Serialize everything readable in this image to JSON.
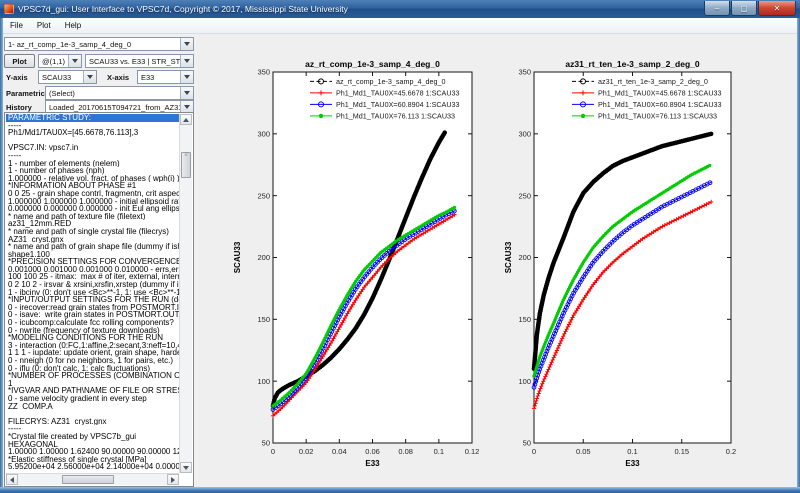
{
  "window": {
    "title": "VPSC7d_gui: User Interface to VPSC7d, Copyright © 2017, Mississippi State University",
    "menu": [
      "File",
      "Plot",
      "Help"
    ],
    "buttons": {
      "minimize": "–",
      "maximize": "▢",
      "close": "✕"
    }
  },
  "controls": {
    "dataset_value": "1- az_rt_comp_1e-3_samp_4_deg_0",
    "plot_button": "Plot",
    "subplot_value": "@(1,1)",
    "series_value": "SCAU33 vs. E33 | STR_STR.OUT",
    "yaxis_label": "Y-axis",
    "yaxis_value": "SCAU33",
    "xaxis_label": "X-axis",
    "xaxis_value": "E33",
    "parametric_label": "Parametric",
    "parametric_value": "(Select)",
    "history_label": "History",
    "history_value": "Loaded_20170615T094721_from_AZ31.list"
  },
  "listbox": {
    "selected_index": 0,
    "lines": [
      "PARAMETRIC STUDY:",
      "-----",
      "Ph1/Md1/TAU0X=[45.6678,76.113],3",
      "",
      "VPSC7.IN: vpsc7.in",
      "-----",
      "1 - number of elements (nelem)",
      "1 - number of phases (nph)",
      "1.000000 - relative vol. fract. of phases ( wph(i) )",
      "*INFORMATION ABOUT PHASE #1",
      "0 0 25 - grain shape contrl, fragmentn, crit aspect ratio",
      "1.000000 1.000000 1.000000 - initial ellipsoid ratios (dummy i",
      "0.000000 0.000000 0.000000 - init Eul ang ellips axes (dumm",
      "* name and path of texture file (filetext)",
      "az31_12mm.RED",
      "* name and path of single crystal file (filecrys)",
      "AZ31_cryst.gnx",
      "* name and path of grain shape file (dummy if ishape=0) (filea",
      "shape1.100",
      "*PRECISION SETTINGS FOR CONVERGENCE PROCEDUR",
      "0.001000 0.001000 0.001000 0.010000 - errs,errd,errm,errso",
      "100 100 25 - itmax:  max # of iter, external, internal and SO l",
      "0 2 10 2 - irsvar & xrsini,xrsfin,xrstep (dummy if irsvar=0)",
      "1 - ibcinv (0: don't use <Bc>**-1, 1: use <Bc>**-1 in SC eq)",
      "*INPUT/OUTPUT SETTINGS FOR THE RUN (default is zero)",
      "0 - irecover:read grain states from POSTMORT.IN (1) or not (0",
      "0 - isave:  write grain states in POSTMORT.OUT at step 'isav",
      "0 - icubcomp:calculate fcc rolling components?",
      "0 - nwrite (frequency of texture downloads)",
      "*MODELING CONDITIONS FOR THE RUN",
      "3 - interaction (0:FC,1:affine,2:secant,3:neff=10,4:tangent,5:S",
      "1 1 1 - iupdate: update orient, grain shape, hardening",
      "0 - nneigh (0 for no neighbors, 1 for pairs, etc.)",
      "0 - iflu (0: don't calc, 1: calc fluctuations)",
      "*NUMBER OF PROCESSES (COMBINATION OF UNIFORM",
      "1",
      "*IVGVAR AND PATH\\NAME OF FILE OR STRESS SUBSPA",
      "0 - same velocity gradient in every step",
      "ZZ_COMP.A",
      "",
      "FILECRYS: AZ31_cryst.gnx",
      "-----",
      "*Crystal file created by VPSC7b_gui",
      "HEXAGONAL",
      "1.00000 1.00000 1.62400 90.00000 90.00000 120.00000",
      "*Elastic stiffness of single crystal [MPa]",
      "5.95200e+04 2.56000e+04 2.14000e+04 0.00000e+00 0.0000"
    ]
  },
  "chart_data": [
    {
      "type": "line",
      "title": "az_rt_comp_1e-3_samp_4_deg_0",
      "xlabel": "E33",
      "ylabel": "SCAU33",
      "xlim": [
        0,
        0.12
      ],
      "ylim": [
        50,
        350
      ],
      "xticks": [
        0,
        0.02,
        0.04,
        0.06,
        0.08,
        0.1,
        0.12
      ],
      "xtick_labels": [
        "0",
        "0.02",
        "0.04",
        "0.06",
        "0.08",
        "0.1",
        "0.12"
      ],
      "yticks": [
        50,
        100,
        150,
        200,
        250,
        300,
        350
      ],
      "ytick_labels": [
        "50",
        "100",
        "150",
        "200",
        "250",
        "300",
        "350"
      ],
      "grid": false,
      "legend_position": "top-inside",
      "series": [
        {
          "name": "az_rt_comp_1e-3_samp_4_deg_0",
          "color": "#000000",
          "marker": "circle-filled",
          "line_width": 2,
          "marker_size": 2.3,
          "marker_spacing": 2,
          "x": [
            0,
            0.001,
            0.003,
            0.006,
            0.01,
            0.015,
            0.02,
            0.025,
            0.03,
            0.035,
            0.04,
            0.045,
            0.05,
            0.055,
            0.06,
            0.065,
            0.07,
            0.075,
            0.08,
            0.085,
            0.09,
            0.095,
            0.1,
            0.104
          ],
          "y": [
            80,
            86,
            91,
            94,
            97,
            100,
            104,
            108,
            113,
            119,
            126,
            134,
            143,
            154,
            167,
            182,
            198,
            215,
            232,
            249,
            265,
            280,
            293,
            302
          ]
        },
        {
          "name": "Ph1_Md1_TAU0X=45.6678 1:SCAU33",
          "color": "#ff0000",
          "marker": "plus",
          "line_width": 1,
          "marker_size": 2.1,
          "marker_spacing": 2.6,
          "x": [
            0,
            0.005,
            0.01,
            0.015,
            0.02,
            0.025,
            0.03,
            0.035,
            0.04,
            0.045,
            0.05,
            0.055,
            0.06,
            0.065,
            0.07,
            0.075,
            0.08,
            0.085,
            0.09,
            0.095,
            0.1,
            0.105,
            0.11
          ],
          "y": [
            72,
            78,
            85,
            92,
            99,
            109,
            120,
            131,
            143,
            155,
            166,
            176,
            184,
            192,
            199,
            205,
            210,
            215,
            219,
            223,
            227,
            231,
            235
          ]
        },
        {
          "name": "Ph1_Md1_TAU0X=60.8904 1:SCAU33",
          "color": "#0000ff",
          "marker": "circle-open",
          "line_width": 1,
          "marker_size": 1.9,
          "marker_spacing": 3.2,
          "x": [
            0,
            0.005,
            0.01,
            0.015,
            0.02,
            0.025,
            0.03,
            0.035,
            0.04,
            0.045,
            0.05,
            0.055,
            0.06,
            0.065,
            0.07,
            0.075,
            0.08,
            0.085,
            0.09,
            0.095,
            0.1,
            0.105,
            0.11
          ],
          "y": [
            77,
            82,
            88,
            95,
            103,
            114,
            126,
            139,
            152,
            164,
            175,
            184,
            192,
            199,
            205,
            210,
            215,
            219,
            223,
            227,
            231,
            235,
            238
          ]
        },
        {
          "name": "Ph1_Md1_TAU0X=76.113 1:SCAU33",
          "color": "#00cc00",
          "marker": "circle-filled",
          "line_width": 1.2,
          "marker_size": 1.7,
          "marker_spacing": 2.4,
          "x": [
            0,
            0.005,
            0.01,
            0.015,
            0.02,
            0.025,
            0.03,
            0.035,
            0.04,
            0.045,
            0.05,
            0.055,
            0.06,
            0.065,
            0.07,
            0.075,
            0.08,
            0.085,
            0.09,
            0.095,
            0.1,
            0.105,
            0.11
          ],
          "y": [
            80,
            85,
            91,
            98,
            106,
            118,
            131,
            145,
            158,
            170,
            181,
            190,
            197,
            204,
            209,
            214,
            218,
            222,
            226,
            230,
            234,
            237,
            241
          ]
        }
      ]
    },
    {
      "type": "line",
      "title": "az31_rt_ten_1e-3_samp_2_deg_0",
      "xlabel": "E33",
      "ylabel": "SCAU33",
      "xlim": [
        0,
        0.2
      ],
      "ylim": [
        50,
        350
      ],
      "xticks": [
        0,
        0.05,
        0.1,
        0.15,
        0.2
      ],
      "xtick_labels": [
        "0",
        "0.05",
        "0.1",
        "0.15",
        "0.2"
      ],
      "yticks": [
        50,
        100,
        150,
        200,
        250,
        300,
        350
      ],
      "ytick_labels": [
        "50",
        "100",
        "150",
        "200",
        "250",
        "300",
        "350"
      ],
      "grid": false,
      "legend_position": "top-inside",
      "series": [
        {
          "name": "az31_rt_ten_1e-3_samp_2_deg_0",
          "color": "#000000",
          "marker": "circle-filled",
          "line_width": 2,
          "marker_size": 2.3,
          "marker_spacing": 2,
          "x": [
            0,
            0.003,
            0.006,
            0.01,
            0.015,
            0.02,
            0.03,
            0.04,
            0.05,
            0.06,
            0.07,
            0.08,
            0.09,
            0.1,
            0.11,
            0.12,
            0.13,
            0.14,
            0.15,
            0.16,
            0.17,
            0.18
          ],
          "y": [
            110,
            138,
            155,
            170,
            184,
            196,
            216,
            237,
            252,
            261,
            268,
            274,
            278,
            281,
            284,
            287,
            290,
            292,
            294,
            296,
            298,
            300
          ]
        },
        {
          "name": "Ph1_Md1_TAU0X=45.6678 1:SCAU33",
          "color": "#ff0000",
          "marker": "plus",
          "line_width": 1,
          "marker_size": 2.1,
          "marker_spacing": 2.6,
          "x": [
            0,
            0.003,
            0.006,
            0.01,
            0.015,
            0.02,
            0.03,
            0.04,
            0.05,
            0.06,
            0.07,
            0.08,
            0.09,
            0.1,
            0.11,
            0.12,
            0.13,
            0.14,
            0.15,
            0.16,
            0.17,
            0.18
          ],
          "y": [
            78,
            86,
            93,
            101,
            110,
            119,
            137,
            153,
            166,
            178,
            188,
            196,
            203,
            209,
            215,
            220,
            225,
            229,
            233,
            237,
            241,
            245
          ]
        },
        {
          "name": "Ph1_Md1_TAU0X=60.8904 1:SCAU33",
          "color": "#0000ff",
          "marker": "circle-open",
          "line_width": 1,
          "marker_size": 1.9,
          "marker_spacing": 3.2,
          "x": [
            0,
            0.003,
            0.006,
            0.01,
            0.015,
            0.02,
            0.03,
            0.04,
            0.05,
            0.06,
            0.07,
            0.08,
            0.09,
            0.1,
            0.11,
            0.12,
            0.13,
            0.14,
            0.15,
            0.16,
            0.17,
            0.18
          ],
          "y": [
            95,
            103,
            110,
            118,
            128,
            137,
            155,
            171,
            184,
            196,
            205,
            213,
            220,
            226,
            231,
            236,
            241,
            245,
            249,
            253,
            257,
            261
          ]
        },
        {
          "name": "Ph1_Md1_TAU0X=76.113 1:SCAU33",
          "color": "#00cc00",
          "marker": "circle-filled",
          "line_width": 1.2,
          "marker_size": 1.7,
          "marker_spacing": 2.4,
          "x": [
            0,
            0.003,
            0.006,
            0.01,
            0.015,
            0.02,
            0.03,
            0.04,
            0.05,
            0.06,
            0.07,
            0.08,
            0.09,
            0.1,
            0.11,
            0.12,
            0.13,
            0.14,
            0.15,
            0.16,
            0.17,
            0.18
          ],
          "y": [
            104,
            112,
            120,
            128,
            138,
            147,
            166,
            182,
            196,
            208,
            217,
            225,
            231,
            237,
            242,
            247,
            252,
            257,
            262,
            267,
            271,
            275
          ]
        }
      ]
    }
  ]
}
